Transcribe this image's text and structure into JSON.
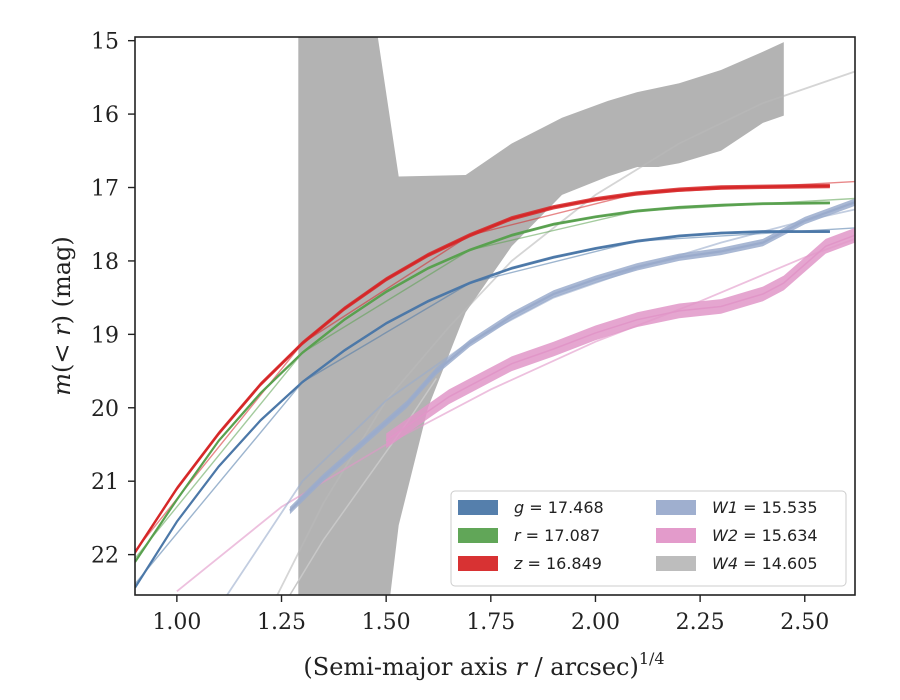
{
  "chart_data": {
    "type": "line",
    "xlabel": "(Semi-major axis r / arcsec)^{1/4}",
    "ylabel": "m(<r) (mag)",
    "xlim": [
      0.9,
      2.62
    ],
    "ylim": [
      22.55,
      14.95
    ],
    "y_inverted": true,
    "x_ticks": [
      "1.00",
      "1.25",
      "1.50",
      "1.75",
      "2.00",
      "2.25",
      "2.50"
    ],
    "y_ticks": [
      "15",
      "16",
      "17",
      "18",
      "19",
      "20",
      "21",
      "22"
    ],
    "legend_position": "lower-right",
    "series": [
      {
        "name": "g = 17.468",
        "label_band": "g",
        "label_value": "= 17.468",
        "color": "#4c78a8",
        "x": [
          0.9,
          1.0,
          1.1,
          1.2,
          1.3,
          1.4,
          1.5,
          1.6,
          1.7,
          1.8,
          1.9,
          2.0,
          2.1,
          2.2,
          2.3,
          2.4,
          2.56
        ],
        "y": [
          22.45,
          21.55,
          20.8,
          20.17,
          19.65,
          19.22,
          18.85,
          18.55,
          18.3,
          18.1,
          17.95,
          17.83,
          17.73,
          17.66,
          17.62,
          17.6,
          17.6
        ],
        "band_halfwidth": 0.02,
        "model": {
          "x": [
            0.9,
            1.3,
            1.7,
            2.1,
            2.62
          ],
          "y": [
            22.4,
            19.65,
            18.3,
            17.73,
            17.55
          ]
        }
      },
      {
        "name": "r = 17.087",
        "label_band": "r",
        "label_value": "= 17.087",
        "color": "#59a14f",
        "x": [
          0.9,
          1.0,
          1.1,
          1.2,
          1.3,
          1.4,
          1.5,
          1.6,
          1.7,
          1.8,
          1.9,
          2.0,
          2.1,
          2.2,
          2.3,
          2.4,
          2.56
        ],
        "y": [
          22.1,
          21.25,
          20.45,
          19.8,
          19.25,
          18.8,
          18.42,
          18.1,
          17.85,
          17.65,
          17.5,
          17.4,
          17.32,
          17.27,
          17.24,
          17.22,
          17.21
        ],
        "band_halfwidth": 0.02,
        "model": {
          "x": [
            0.9,
            1.3,
            1.7,
            2.1,
            2.62
          ],
          "y": [
            22.05,
            19.25,
            17.85,
            17.32,
            17.15
          ]
        }
      },
      {
        "name": "z = 16.849",
        "label_band": "z",
        "label_value": "= 16.849",
        "color": "#d62728",
        "x": [
          0.9,
          1.0,
          1.1,
          1.2,
          1.3,
          1.4,
          1.5,
          1.6,
          1.7,
          1.8,
          1.9,
          2.0,
          2.1,
          2.2,
          2.3,
          2.4,
          2.56
        ],
        "y": [
          21.97,
          21.1,
          20.35,
          19.68,
          19.12,
          18.65,
          18.25,
          17.92,
          17.65,
          17.42,
          17.27,
          17.16,
          17.08,
          17.03,
          17.0,
          16.99,
          16.98
        ],
        "band_halfwidth": 0.03,
        "model": {
          "x": [
            0.9,
            1.3,
            1.7,
            2.1,
            2.62
          ],
          "y": [
            21.95,
            19.12,
            17.65,
            17.08,
            16.92
          ]
        }
      },
      {
        "name": "W1 = 15.535",
        "label_band": "W1",
        "label_value": "= 15.535",
        "color": "#9aabcc",
        "x": [
          1.27,
          1.35,
          1.45,
          1.55,
          1.62,
          1.7,
          1.8,
          1.9,
          2.0,
          2.1,
          2.2,
          2.3,
          2.4,
          2.45,
          2.5,
          2.62
        ],
        "y": [
          21.4,
          20.95,
          20.45,
          19.95,
          19.5,
          19.12,
          18.75,
          18.45,
          18.25,
          18.08,
          17.95,
          17.87,
          17.75,
          17.6,
          17.45,
          17.2
        ],
        "band_halfwidth": 0.05,
        "model": {
          "x": [
            1.12,
            1.3,
            1.5,
            1.7,
            1.9,
            2.1,
            2.3,
            2.5,
            2.62
          ],
          "y": [
            22.55,
            21.0,
            19.9,
            19.1,
            18.5,
            18.1,
            17.75,
            17.45,
            17.3
          ]
        }
      },
      {
        "name": "W2 = 15.634",
        "label_band": "W2",
        "label_value": "= 15.634",
        "color": "#e196c8",
        "x": [
          1.5,
          1.6,
          1.65,
          1.7,
          1.8,
          1.9,
          2.0,
          2.1,
          2.2,
          2.3,
          2.4,
          2.45,
          2.5,
          2.55,
          2.62
        ],
        "y": [
          20.45,
          20.05,
          19.85,
          19.7,
          19.4,
          19.2,
          18.98,
          18.8,
          18.68,
          18.62,
          18.45,
          18.3,
          18.05,
          17.8,
          17.65
        ],
        "band_halfwidth": 0.1,
        "model": {
          "x": [
            1.0,
            1.25,
            1.5,
            1.75,
            2.0,
            2.25,
            2.5,
            2.62
          ],
          "y": [
            22.5,
            21.35,
            20.5,
            19.75,
            19.1,
            18.55,
            17.95,
            17.7
          ]
        }
      },
      {
        "name": "W4 = 14.605",
        "label_band": "W4",
        "label_value": "= 14.605",
        "color": "#b9b9b9",
        "band_upper": {
          "x": [
            1.29,
            1.48,
            1.53,
            1.69,
            1.8,
            1.92,
            2.03,
            2.1,
            2.2,
            2.3,
            2.4,
            2.45
          ],
          "y": [
            14.95,
            14.95,
            16.85,
            16.83,
            16.4,
            16.05,
            15.82,
            15.7,
            15.58,
            15.4,
            15.15,
            15.02
          ]
        },
        "band_lower": {
          "x": [
            2.45,
            2.4,
            2.3,
            2.2,
            2.15,
            2.1,
            2.03,
            1.92,
            1.8,
            1.69,
            1.6,
            1.53,
            1.51,
            1.29
          ],
          "y": [
            16.02,
            16.12,
            16.5,
            16.67,
            16.72,
            16.72,
            16.85,
            17.1,
            17.8,
            18.7,
            20.0,
            21.6,
            22.55,
            22.55
          ]
        },
        "model": {
          "x": [
            1.24,
            1.35,
            1.5,
            1.65,
            1.8,
            2.0,
            2.2,
            2.4,
            2.62
          ],
          "y": [
            22.55,
            21.3,
            19.9,
            18.9,
            18.0,
            17.1,
            16.4,
            15.85,
            15.42
          ]
        },
        "model_lower": {
          "x": [
            1.27,
            1.35,
            1.45,
            1.55,
            1.62
          ],
          "y": [
            22.55,
            21.8,
            21.0,
            20.2,
            19.6
          ]
        }
      }
    ]
  }
}
